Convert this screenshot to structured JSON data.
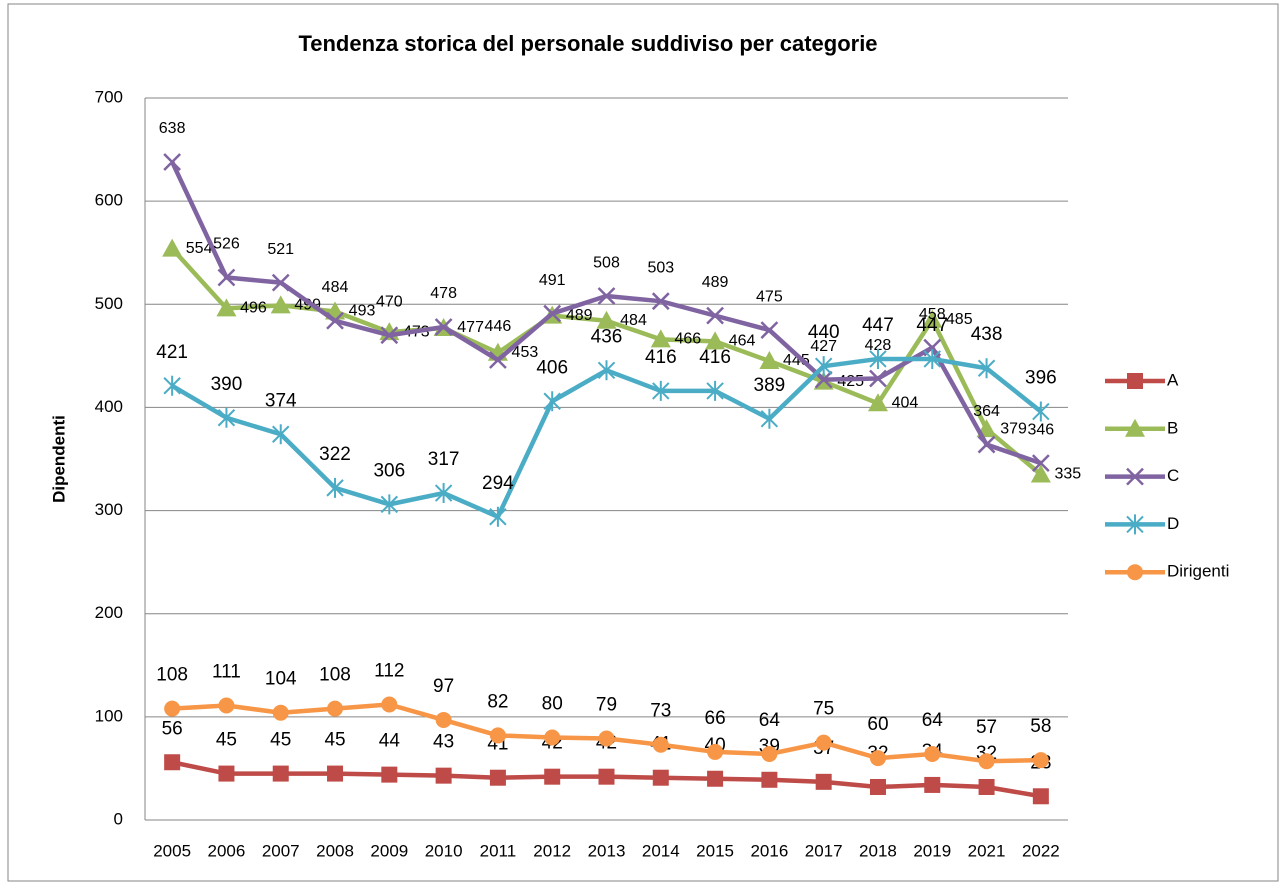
{
  "chart_data": {
    "type": "line",
    "title": "Tendenza storica del personale suddiviso per categorie",
    "y_label": "Dipendenti",
    "categories": [
      "2005",
      "2006",
      "2007",
      "2008",
      "2009",
      "2010",
      "2011",
      "2012",
      "2013",
      "2014",
      "2015",
      "2016",
      "2017",
      "2018",
      "2019",
      "2021",
      "2022"
    ],
    "ylim": [
      0,
      700
    ],
    "yticks": [
      0,
      100,
      200,
      300,
      400,
      500,
      600,
      700
    ],
    "grid": true,
    "legend": "right",
    "series": [
      {
        "name": "A",
        "color": "#be4b48",
        "label_color": "#c00000",
        "marker": "square",
        "values": [
          56,
          45,
          45,
          45,
          44,
          43,
          41,
          42,
          42,
          41,
          40,
          39,
          37,
          32,
          34,
          32,
          23
        ]
      },
      {
        "name": "B",
        "color": "#9bbb59",
        "label_color": "#76923c",
        "marker": "triangle",
        "values": [
          554,
          496,
          499,
          493,
          473,
          477,
          453,
          489,
          484,
          466,
          464,
          445,
          425,
          404,
          485,
          379,
          335
        ]
      },
      {
        "name": "C",
        "color": "#8064a2",
        "label_color": "#5f497a",
        "marker": "x",
        "values": [
          638,
          526,
          521,
          484,
          470,
          478,
          446,
          491,
          508,
          503,
          489,
          475,
          427,
          428,
          458,
          364,
          346
        ]
      },
      {
        "name": "D",
        "color": "#4bacc6",
        "label_color": "#0070c0",
        "marker": "star",
        "values": [
          421,
          390,
          374,
          322,
          306,
          317,
          294,
          406,
          436,
          416,
          416,
          389,
          440,
          447,
          447,
          438,
          396
        ]
      },
      {
        "name": "Dirigenti",
        "color": "#f79646",
        "label_color": "#e46c0a",
        "marker": "circle",
        "values": [
          108,
          111,
          104,
          108,
          112,
          97,
          82,
          80,
          79,
          73,
          66,
          64,
          75,
          60,
          64,
          57,
          58
        ]
      }
    ]
  }
}
